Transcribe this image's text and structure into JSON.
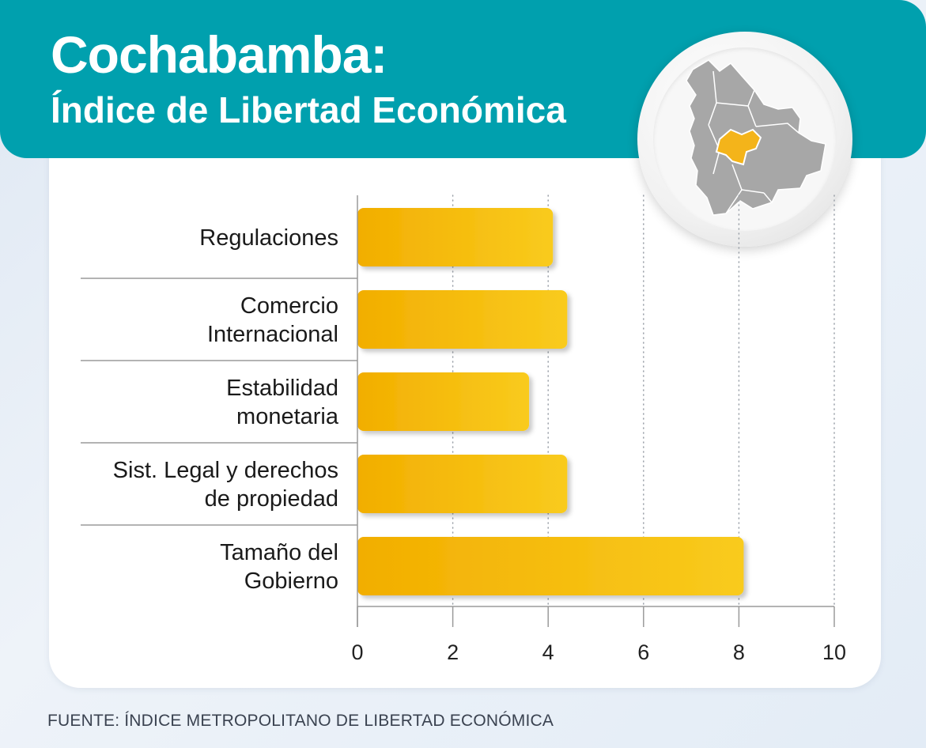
{
  "title": {
    "line1": "Cochabamba:",
    "line2": "Índice de Libertad Económica"
  },
  "map": {
    "icon": "bolivia-map-icon",
    "highlight_region": "Cochabamba",
    "highlight_color": "#f4b41a",
    "base_color": "#a7a7a7"
  },
  "colors": {
    "header": "#00a0ae",
    "bar_start": "#f2ae00",
    "bar_end": "#f9cb1d",
    "text": "#1a1a1a"
  },
  "chart_data": {
    "type": "bar",
    "orientation": "horizontal",
    "categories": [
      [
        "Regulaciones"
      ],
      [
        "Comercio",
        "Internacional"
      ],
      [
        "Estabilidad",
        "monetaria"
      ],
      [
        "Sist. Legal y derechos",
        "de propiedad"
      ],
      [
        "Tamaño del",
        "Gobierno"
      ]
    ],
    "values": [
      4.1,
      4.4,
      3.6,
      4.4,
      8.1
    ],
    "xlim": [
      0,
      10
    ],
    "xticks": [
      "0",
      "2",
      "4",
      "6",
      "8",
      "10"
    ],
    "xlabel": "",
    "ylabel": "",
    "grid": "vertical dotted"
  },
  "source": "FUENTE: ÍNDICE METROPOLITANO DE LIBERTAD ECONÓMICA"
}
